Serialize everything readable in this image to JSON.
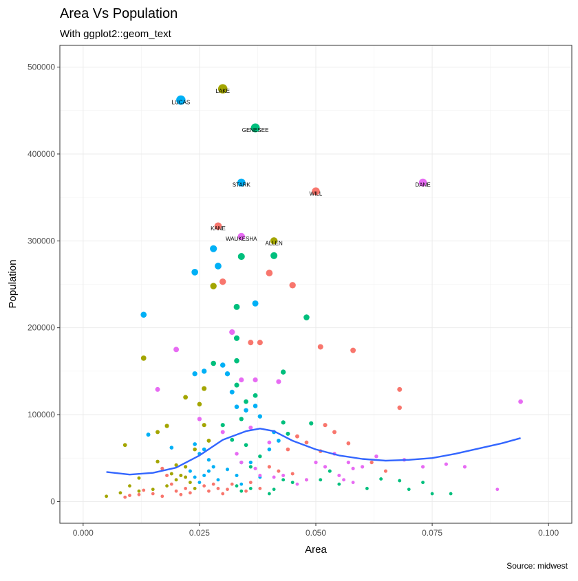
{
  "chart_data": {
    "type": "scatter",
    "title": "Area Vs Population",
    "subtitle": "With ggplot2::geom_text",
    "xlabel": "Area",
    "ylabel": "Population",
    "caption": "Source: midwest",
    "xlim": [
      -0.005,
      0.105
    ],
    "ylim": [
      -25000,
      525000
    ],
    "x_ticks": [
      0,
      0.025,
      0.05,
      0.075,
      0.1
    ],
    "x_tick_labels": [
      "0.000",
      "0.025",
      "0.050",
      "0.075",
      "0.100"
    ],
    "y_ticks": [
      0,
      100000,
      200000,
      300000,
      400000,
      500000
    ],
    "y_tick_labels": [
      "0",
      "100000",
      "200000",
      "300000",
      "400000",
      "500000"
    ],
    "grid": true,
    "legend": "none",
    "colors": {
      "IL": "#f8766d",
      "IN": "#a3a500",
      "MI": "#00bf7d",
      "OH": "#00b0f6",
      "WI": "#e76bf3",
      "smooth": "#3366ff",
      "panel_border": "#333333",
      "grid": "#ebebeb"
    },
    "labeled_points": [
      {
        "label": "LUCAS",
        "x": 0.021,
        "y": 462000,
        "state": "OH"
      },
      {
        "label": "LAKE",
        "x": 0.03,
        "y": 475000,
        "state": "IN"
      },
      {
        "label": "GENESEE",
        "x": 0.037,
        "y": 430000,
        "state": "MI"
      },
      {
        "label": "STARK",
        "x": 0.034,
        "y": 367000,
        "state": "OH"
      },
      {
        "label": "WILL",
        "x": 0.05,
        "y": 357000,
        "state": "IL"
      },
      {
        "label": "DANE",
        "x": 0.073,
        "y": 367000,
        "state": "WI"
      },
      {
        "label": "KANE",
        "x": 0.029,
        "y": 317000,
        "state": "IL"
      },
      {
        "label": "WAUKESHA",
        "x": 0.034,
        "y": 305000,
        "state": "WI"
      },
      {
        "label": "ALLEN",
        "x": 0.041,
        "y": 300000,
        "state": "IN"
      }
    ],
    "series": [
      {
        "state": "OH",
        "points": [
          [
            0.013,
            215000
          ],
          [
            0.024,
            264000
          ],
          [
            0.028,
            291000
          ],
          [
            0.029,
            271000
          ],
          [
            0.037,
            228000
          ],
          [
            0.014,
            77000
          ],
          [
            0.019,
            62000
          ],
          [
            0.024,
            147000
          ],
          [
            0.026,
            150000
          ],
          [
            0.03,
            157000
          ],
          [
            0.031,
            147000
          ],
          [
            0.032,
            126000
          ],
          [
            0.033,
            109000
          ],
          [
            0.035,
            105000
          ],
          [
            0.037,
            110000
          ],
          [
            0.038,
            98000
          ],
          [
            0.024,
            66000
          ],
          [
            0.025,
            55000
          ],
          [
            0.026,
            60000
          ],
          [
            0.027,
            48000
          ],
          [
            0.028,
            40000
          ],
          [
            0.023,
            35000
          ],
          [
            0.024,
            28000
          ],
          [
            0.025,
            22000
          ],
          [
            0.026,
            30000
          ],
          [
            0.027,
            35000
          ],
          [
            0.029,
            25000
          ],
          [
            0.031,
            37000
          ],
          [
            0.033,
            30000
          ],
          [
            0.034,
            20000
          ],
          [
            0.036,
            45000
          ],
          [
            0.038,
            28000
          ],
          [
            0.04,
            60000
          ],
          [
            0.041,
            80000
          ],
          [
            0.042,
            70000
          ]
        ]
      },
      {
        "state": "MI",
        "points": [
          [
            0.034,
            282000
          ],
          [
            0.041,
            283000
          ],
          [
            0.033,
            224000
          ],
          [
            0.048,
            212000
          ],
          [
            0.033,
            188000
          ],
          [
            0.033,
            162000
          ],
          [
            0.028,
            159000
          ],
          [
            0.043,
            149000
          ],
          [
            0.033,
            134000
          ],
          [
            0.035,
            115000
          ],
          [
            0.037,
            122000
          ],
          [
            0.043,
            91000
          ],
          [
            0.049,
            90000
          ],
          [
            0.044,
            78000
          ],
          [
            0.034,
            95000
          ],
          [
            0.03,
            88000
          ],
          [
            0.032,
            71000
          ],
          [
            0.035,
            65000
          ],
          [
            0.038,
            52000
          ],
          [
            0.034,
            45000
          ],
          [
            0.036,
            40000
          ],
          [
            0.033,
            18000
          ],
          [
            0.034,
            12000
          ],
          [
            0.036,
            15000
          ],
          [
            0.041,
            14000
          ],
          [
            0.04,
            9000
          ],
          [
            0.043,
            25000
          ],
          [
            0.045,
            22000
          ],
          [
            0.051,
            25000
          ],
          [
            0.053,
            35000
          ],
          [
            0.055,
            20000
          ],
          [
            0.061,
            15000
          ],
          [
            0.064,
            26000
          ],
          [
            0.068,
            24000
          ],
          [
            0.07,
            14000
          ],
          [
            0.073,
            22000
          ],
          [
            0.075,
            9000
          ],
          [
            0.079,
            9000
          ]
        ]
      },
      {
        "state": "IN",
        "points": [
          [
            0.013,
            165000
          ],
          [
            0.009,
            65000
          ],
          [
            0.012,
            27000
          ],
          [
            0.016,
            80000
          ],
          [
            0.018,
            87000
          ],
          [
            0.022,
            120000
          ],
          [
            0.025,
            112000
          ],
          [
            0.026,
            130000
          ],
          [
            0.028,
            248000
          ],
          [
            0.026,
            88000
          ],
          [
            0.027,
            70000
          ],
          [
            0.024,
            60000
          ],
          [
            0.02,
            42000
          ],
          [
            0.016,
            46000
          ],
          [
            0.019,
            32000
          ],
          [
            0.021,
            30000
          ],
          [
            0.02,
            25000
          ],
          [
            0.022,
            28000
          ],
          [
            0.023,
            22000
          ],
          [
            0.024,
            15000
          ],
          [
            0.022,
            40000
          ],
          [
            0.018,
            18000
          ],
          [
            0.015,
            14000
          ],
          [
            0.012,
            12000
          ],
          [
            0.01,
            18000
          ],
          [
            0.008,
            10000
          ],
          [
            0.005,
            6000
          ]
        ]
      },
      {
        "state": "IL",
        "points": [
          [
            0.03,
            253000
          ],
          [
            0.04,
            263000
          ],
          [
            0.045,
            249000
          ],
          [
            0.036,
            183000
          ],
          [
            0.038,
            183000
          ],
          [
            0.051,
            178000
          ],
          [
            0.058,
            174000
          ],
          [
            0.068,
            129000
          ],
          [
            0.068,
            108000
          ],
          [
            0.052,
            88000
          ],
          [
            0.054,
            80000
          ],
          [
            0.057,
            67000
          ],
          [
            0.044,
            60000
          ],
          [
            0.046,
            75000
          ],
          [
            0.048,
            68000
          ],
          [
            0.051,
            58000
          ],
          [
            0.062,
            45000
          ],
          [
            0.065,
            35000
          ],
          [
            0.04,
            40000
          ],
          [
            0.042,
            35000
          ],
          [
            0.045,
            32000
          ],
          [
            0.048,
            25000
          ],
          [
            0.017,
            38000
          ],
          [
            0.018,
            30000
          ],
          [
            0.019,
            20000
          ],
          [
            0.02,
            12000
          ],
          [
            0.021,
            8000
          ],
          [
            0.022,
            15000
          ],
          [
            0.023,
            10000
          ],
          [
            0.017,
            6000
          ],
          [
            0.015,
            9000
          ],
          [
            0.013,
            13000
          ],
          [
            0.012,
            8000
          ],
          [
            0.01,
            7000
          ],
          [
            0.009,
            5000
          ],
          [
            0.026,
            18000
          ],
          [
            0.027,
            12000
          ],
          [
            0.028,
            20000
          ],
          [
            0.029,
            15000
          ],
          [
            0.03,
            9000
          ],
          [
            0.031,
            14000
          ],
          [
            0.032,
            20000
          ],
          [
            0.035,
            12000
          ],
          [
            0.036,
            22000
          ],
          [
            0.038,
            15000
          ]
        ]
      },
      {
        "state": "WI",
        "points": [
          [
            0.02,
            175000
          ],
          [
            0.032,
            195000
          ],
          [
            0.016,
            129000
          ],
          [
            0.034,
            140000
          ],
          [
            0.037,
            140000
          ],
          [
            0.042,
            138000
          ],
          [
            0.094,
            115000
          ],
          [
            0.025,
            95000
          ],
          [
            0.03,
            80000
          ],
          [
            0.036,
            85000
          ],
          [
            0.04,
            68000
          ],
          [
            0.05,
            45000
          ],
          [
            0.054,
            55000
          ],
          [
            0.057,
            45000
          ],
          [
            0.058,
            38000
          ],
          [
            0.06,
            40000
          ],
          [
            0.063,
            52000
          ],
          [
            0.069,
            48000
          ],
          [
            0.078,
            43000
          ],
          [
            0.082,
            40000
          ],
          [
            0.089,
            14000
          ],
          [
            0.033,
            55000
          ],
          [
            0.034,
            45000
          ],
          [
            0.037,
            38000
          ],
          [
            0.038,
            30000
          ],
          [
            0.041,
            28000
          ],
          [
            0.043,
            30000
          ],
          [
            0.046,
            20000
          ],
          [
            0.048,
            25000
          ],
          [
            0.052,
            40000
          ],
          [
            0.055,
            30000
          ],
          [
            0.056,
            25000
          ],
          [
            0.058,
            22000
          ],
          [
            0.073,
            40000
          ]
        ]
      }
    ],
    "smooth_line": [
      [
        0.005,
        34000
      ],
      [
        0.01,
        31000
      ],
      [
        0.015,
        33000
      ],
      [
        0.02,
        39000
      ],
      [
        0.025,
        53000
      ],
      [
        0.03,
        71000
      ],
      [
        0.035,
        81000
      ],
      [
        0.038,
        84000
      ],
      [
        0.041,
        81000
      ],
      [
        0.045,
        70000
      ],
      [
        0.05,
        60000
      ],
      [
        0.055,
        53000
      ],
      [
        0.06,
        49000
      ],
      [
        0.065,
        47000
      ],
      [
        0.07,
        48000
      ],
      [
        0.075,
        50000
      ],
      [
        0.08,
        55000
      ],
      [
        0.085,
        61000
      ],
      [
        0.09,
        67000
      ],
      [
        0.094,
        73000
      ]
    ]
  }
}
